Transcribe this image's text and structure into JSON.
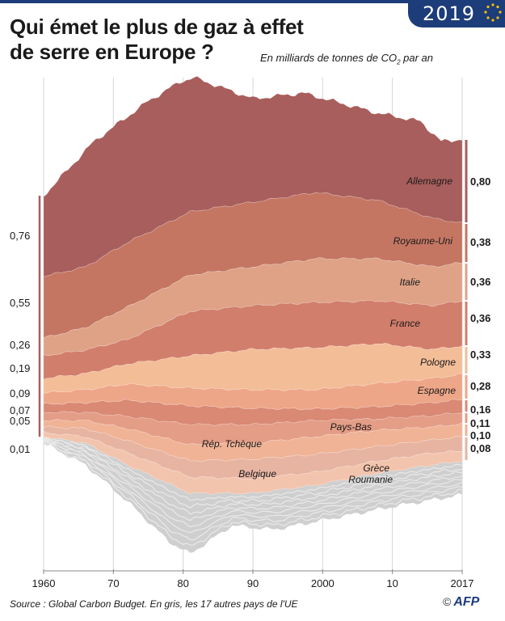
{
  "header": {
    "badge_year": "2019",
    "title_line1": "Qui émet le plus de gaz à effet",
    "title_line2": "de serre en Europe ?",
    "subtitle_before": "En milliards de tonnes de CO",
    "subtitle_sub": "2",
    "subtitle_after": " par an"
  },
  "footer": {
    "source": "Source : Global Carbon Budget. En gris, les 17 autres pays de l'UE",
    "copyright": "©",
    "agency": "AFP"
  },
  "colors": {
    "Allemagne": "#a85e5c",
    "Royaume-Uni": "#c47663",
    "Italie": "#dfa287",
    "France": "#d27e6c",
    "Pologne": "#f3bd98",
    "Espagne": "#eea688",
    "Pays-Bas": "#d98974",
    "Rép. Tchèque": "#e49d86",
    "Belgique": "#f0b396",
    "Grèce": "#e7b4a2",
    "Roumanie": "#f3c4ad",
    "others": "#cfcfcf",
    "badge": "#1d3c7a"
  },
  "chart_data": {
    "type": "area",
    "x_ticks": [
      "1960",
      "70",
      "80",
      "90",
      "2000",
      "10",
      "2017"
    ],
    "x_range": [
      1960,
      2017
    ],
    "series": [
      {
        "name": "Allemagne",
        "start_label": "",
        "end_label": "0,80"
      },
      {
        "name": "Royaume-Uni",
        "start_label": "0,76",
        "end_label": "0,38"
      },
      {
        "name": "Italie",
        "start_label": "",
        "end_label": "0,36"
      },
      {
        "name": "France",
        "start_label": "0,55",
        "end_label": "0,36"
      },
      {
        "name": "Pologne",
        "start_label": "0,26",
        "end_label": "0,33"
      },
      {
        "name": "Espagne",
        "start_label": "0,19",
        "end_label": "0,28"
      },
      {
        "name": "Pays-Bas",
        "start_label": "0,09",
        "end_label": "0,16"
      },
      {
        "name": "Rép. Tchèque",
        "start_label": "0,07",
        "end_label": "0,11"
      },
      {
        "name": "Belgique",
        "start_label": "0,05",
        "end_label": "0,10"
      },
      {
        "name": "Grèce",
        "start_label": "",
        "end_label": ""
      },
      {
        "name": "Roumanie",
        "start_label": "0,01",
        "end_label": "0,08"
      }
    ],
    "left_values": [
      "0,76",
      "0,55",
      "0,26",
      "0,19",
      "0,09",
      "0,07",
      "0,05",
      "0,01"
    ],
    "right_values": [
      "0,80",
      "0,38",
      "0,36",
      "0,36",
      "0,33",
      "0,28",
      "0,16",
      "0,11",
      "0,10",
      "0,08"
    ],
    "gridlines": "vertical"
  }
}
